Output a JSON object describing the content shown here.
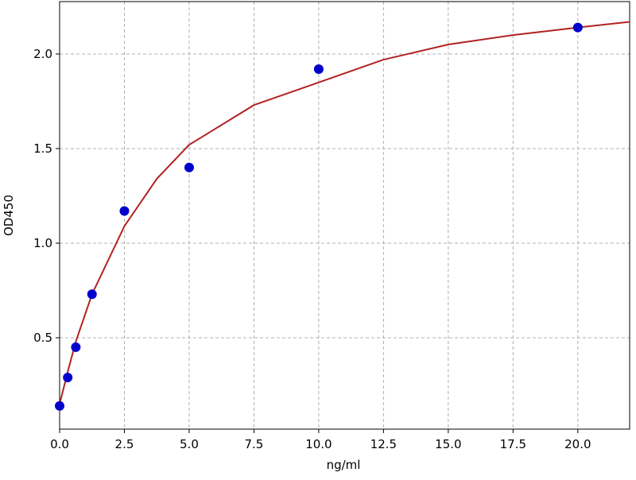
{
  "chart_data": {
    "type": "scatter",
    "x_label": "ng/ml",
    "y_label": "OD450",
    "x": [
      0,
      0.3125,
      0.625,
      1.25,
      2.5,
      5,
      10,
      20
    ],
    "values": [
      0.14,
      0.29,
      0.45,
      0.73,
      1.17,
      1.4,
      1.92,
      2.14
    ],
    "color": "#0000cc",
    "curve": {
      "color": "#b22222",
      "x": [
        0,
        0.3125,
        0.625,
        1.25,
        2.5,
        3.75,
        5,
        7.5,
        10,
        12.5,
        15,
        17.5,
        20,
        22
      ],
      "values": [
        0.15,
        0.32,
        0.48,
        0.73,
        1.09,
        1.34,
        1.52,
        1.73,
        1.85,
        1.97,
        2.05,
        2.1,
        2.14,
        2.17
      ]
    },
    "xlim": [
      0,
      22
    ],
    "ylim": [
      0.017,
      2.277
    ],
    "xticks": [
      {
        "value": 0,
        "label": "0.0"
      },
      2.5,
      {
        "value": 5,
        "label": "5.0"
      },
      7.5,
      {
        "value": 10,
        "label": "10.0"
      },
      12.5,
      {
        "value": 15,
        "label": "15.0"
      },
      17.5,
      {
        "value": 20,
        "label": "20.0"
      }
    ],
    "yticks": [
      0.5,
      {
        "value": 1,
        "label": "1.0"
      },
      1.5,
      {
        "value": 2,
        "label": "2.0"
      }
    ],
    "grid": true
  }
}
